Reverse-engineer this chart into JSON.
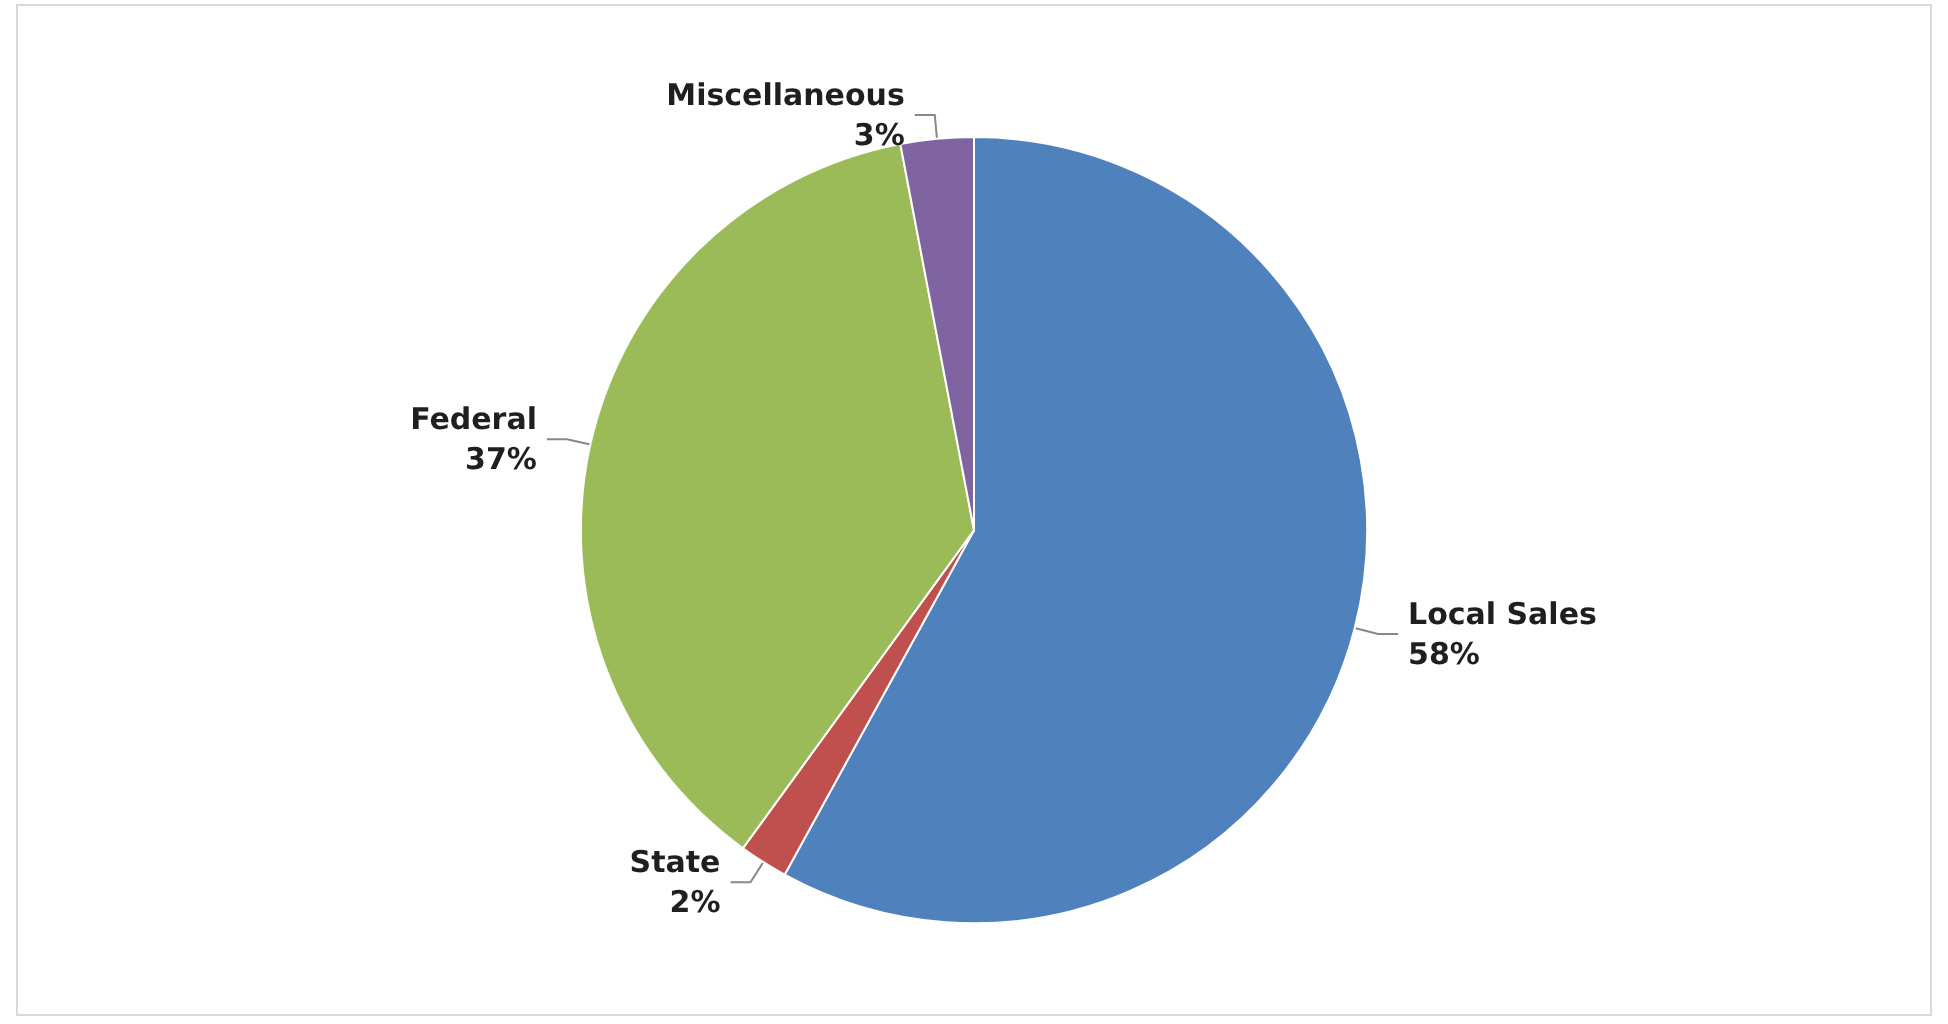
{
  "chart_data": {
    "type": "pie",
    "categories": [
      "Local Sales",
      "State",
      "Federal",
      "Miscellaneous"
    ],
    "values": [
      58,
      2,
      37,
      3
    ],
    "value_labels": [
      "58%",
      "2%",
      "37%",
      "3%"
    ],
    "colors": [
      "#4f81bd",
      "#c0504d",
      "#9bbb59",
      "#8064a2"
    ],
    "legend": false
  }
}
